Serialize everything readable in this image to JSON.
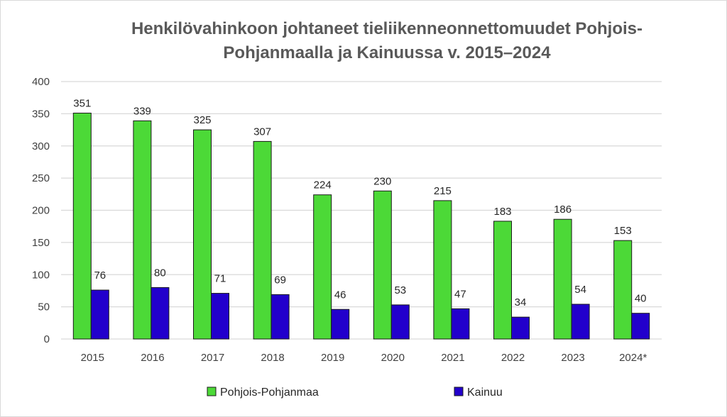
{
  "chart_data": {
    "type": "bar",
    "title": "Henkilövahinkoon johtaneet tieliikenneonnettomuudet Pohjois-Pohjanmaalla ja Kainuussa v. 2015–2024",
    "title_lines": [
      "Henkilövahinkoon johtaneet tieliikenneonnettomuudet Pohjois-",
      "Pohjanmaalla ja Kainuussa v. 2015–2024"
    ],
    "categories": [
      "2015",
      "2016",
      "2017",
      "2018",
      "2019",
      "2020",
      "2021",
      "2022",
      "2023",
      "2024*"
    ],
    "series": [
      {
        "name": "Pohjois-Pohjanmaa",
        "color": "#4cd937",
        "values": [
          351,
          339,
          325,
          307,
          224,
          230,
          215,
          183,
          186,
          153
        ]
      },
      {
        "name": "Kainuu",
        "color": "#2200cc",
        "values": [
          76,
          80,
          71,
          69,
          46,
          53,
          47,
          34,
          54,
          40
        ]
      }
    ],
    "ylim": [
      0,
      400
    ],
    "yticks": [
      "0",
      "50",
      "100",
      "150",
      "200",
      "250",
      "300",
      "350",
      "400"
    ],
    "grid": true,
    "legend": "bottom",
    "data_labels": true
  }
}
